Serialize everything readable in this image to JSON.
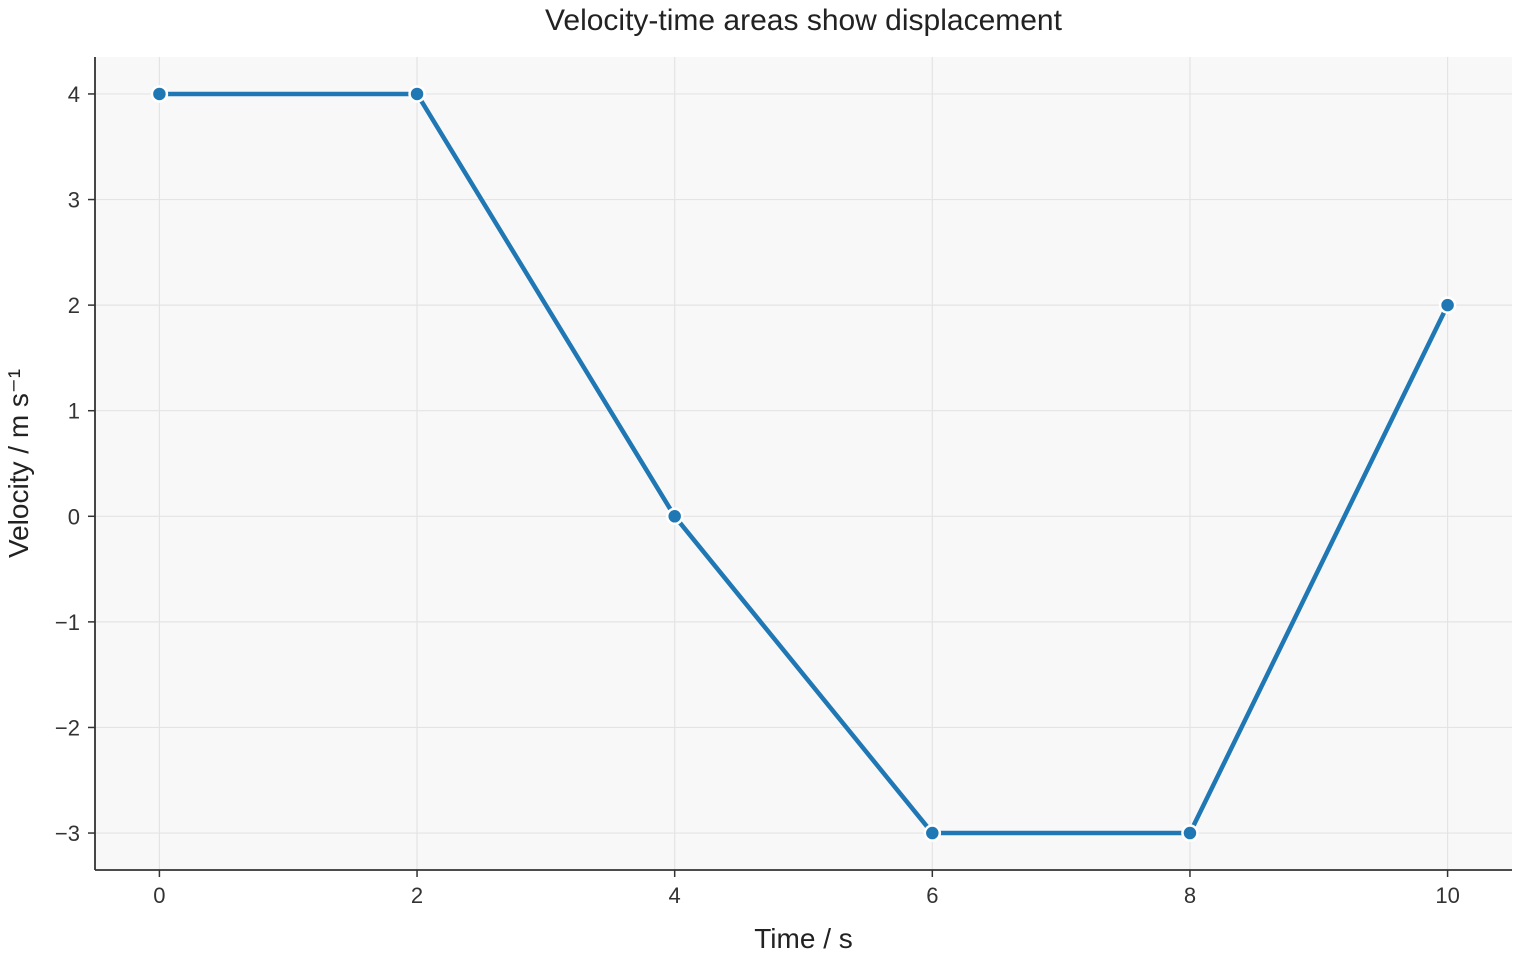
{
  "chart_data": {
    "type": "line",
    "title": "Velocity-time areas show displacement",
    "xlabel": "Time / s",
    "ylabel": "Velocity / m s⁻¹",
    "x": [
      0,
      2,
      4,
      6,
      8,
      10
    ],
    "series": [
      {
        "values": [
          4,
          4,
          0,
          -3,
          -3,
          2
        ]
      }
    ],
    "xlim": [
      -0.5,
      10.5
    ],
    "ylim": [
      -3.35,
      4.35
    ],
    "xticks": [
      0,
      2,
      4,
      6,
      8,
      10
    ],
    "xtick_labels": [
      "0",
      "2",
      "4",
      "6",
      "8",
      "10"
    ],
    "yticks": [
      4,
      3,
      2,
      1,
      0,
      -1,
      -2,
      -3
    ],
    "ytick_labels": [
      "4",
      "3",
      "2",
      "1",
      "0",
      "−1",
      "−2",
      "−3"
    ],
    "grid": true,
    "colors": {
      "line": "#1f77b4",
      "plot_background": "#f8f8f8",
      "marker_edge": "#ffffff"
    }
  }
}
